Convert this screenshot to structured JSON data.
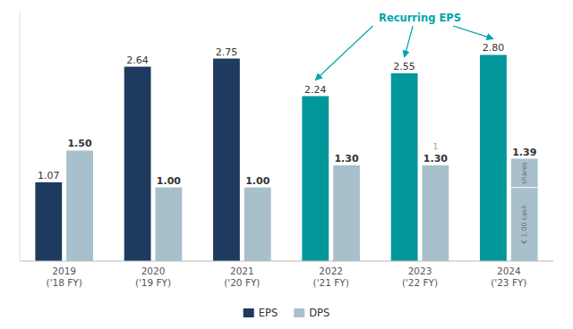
{
  "chart_data": {
    "type": "bar",
    "categories": [
      "2019\n('18 FY)",
      "2020\n('19 FY)",
      "2021\n('20 FY)",
      "2022\n('21 FY)",
      "2023\n('22 FY)",
      "2024\n('23 FY)"
    ],
    "series": [
      {
        "name": "EPS",
        "color": "#1e3a5f",
        "colors": [
          "#1e3a5f",
          "#1e3a5f",
          "#1e3a5f",
          "#00969a",
          "#00969a",
          "#00969a"
        ],
        "values": [
          1.07,
          2.64,
          2.75,
          2.24,
          2.55,
          2.8
        ],
        "value_labels": [
          "1.07",
          "2.64",
          "2.75",
          "2.24",
          "2.55",
          "2.80"
        ]
      },
      {
        "name": "DPS",
        "color": "#a8bfcc",
        "values": [
          1.5,
          1.0,
          1.0,
          1.3,
          1.3,
          1.39
        ],
        "value_labels": [
          "1.50",
          "1.00",
          "1.00",
          "1.30",
          "1.30",
          "1.39"
        ]
      }
    ],
    "ylim": [
      0,
      3.4
    ],
    "data_labels": true,
    "tick_labels": "x",
    "grid": false,
    "legend": "bottom",
    "annotations": [
      {
        "text": "Recurring EPS",
        "color": "#00a5aa",
        "series": "EPS",
        "categories": [
          "2022\n('21 FY)",
          "2023\n('22 FY)",
          "2024\n('23 FY)"
        ]
      },
      {
        "text": "1",
        "category": "2023\n('22 FY)",
        "series": "DPS"
      },
      {
        "text": "€ 1.00 cash",
        "category": "2024\n('23 FY)",
        "series": "DPS",
        "value": 1.0
      },
      {
        "text": "shares",
        "category": "2024\n('23 FY)",
        "series": "DPS"
      }
    ]
  }
}
